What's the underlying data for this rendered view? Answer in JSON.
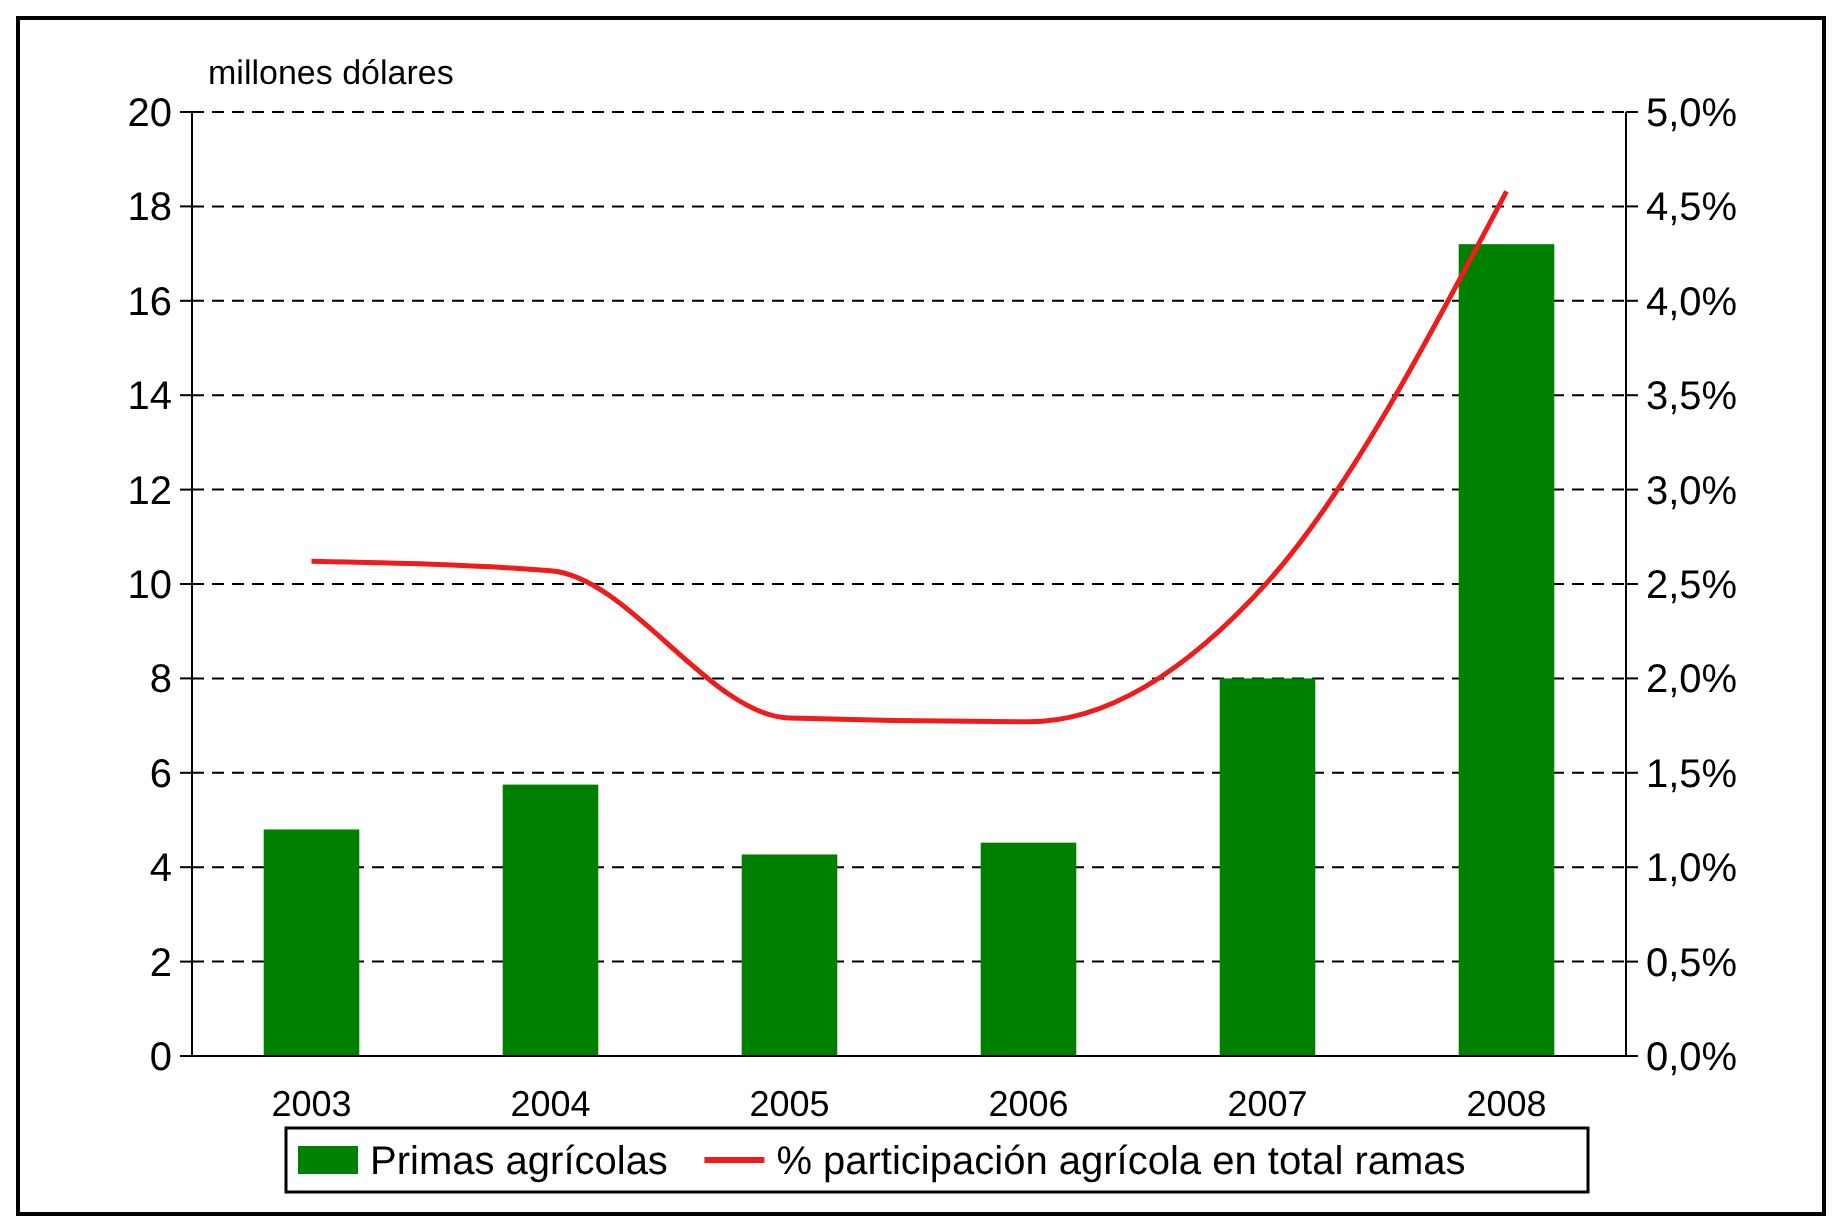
{
  "chart_data": {
    "type": "bar",
    "ylabel": "millones dólares",
    "categories": [
      "2003",
      "2004",
      "2005",
      "2006",
      "2007",
      "2008"
    ],
    "series": [
      {
        "name": "Primas agrícolas",
        "color": "#008000",
        "values": [
          4.8,
          5.75,
          4.27,
          4.52,
          8.0,
          17.2
        ]
      },
      {
        "name": "% participación agrícola en total ramas",
        "type": "line",
        "axis": "y2",
        "color": "#ee1c1c",
        "values": [
          2.62,
          2.57,
          1.79,
          1.77,
          2.51,
          4.58
        ]
      }
    ],
    "ylim": [
      0,
      20
    ],
    "yticks": [
      0,
      2,
      4,
      6,
      8,
      10,
      12,
      14,
      16,
      18,
      20
    ],
    "y2lim": [
      0,
      5
    ],
    "y2ticks": [
      {
        "value": 0,
        "label": "0,0%"
      },
      {
        "value": 0.5,
        "label": "0,5%"
      },
      {
        "value": 1,
        "label": "1,0%"
      },
      {
        "value": 1.5,
        "label": "1,5%"
      },
      {
        "value": 2,
        "label": "2,0%"
      },
      {
        "value": 2.5,
        "label": "2,5%"
      },
      {
        "value": 3,
        "label": "3,0%"
      },
      {
        "value": 3.5,
        "label": "3,5%"
      },
      {
        "value": 4,
        "label": "4,0%"
      },
      {
        "value": 4.5,
        "label": "4,5%"
      },
      {
        "value": 5,
        "label": "5,0%"
      }
    ],
    "grid": "y",
    "legend": "bottom"
  }
}
